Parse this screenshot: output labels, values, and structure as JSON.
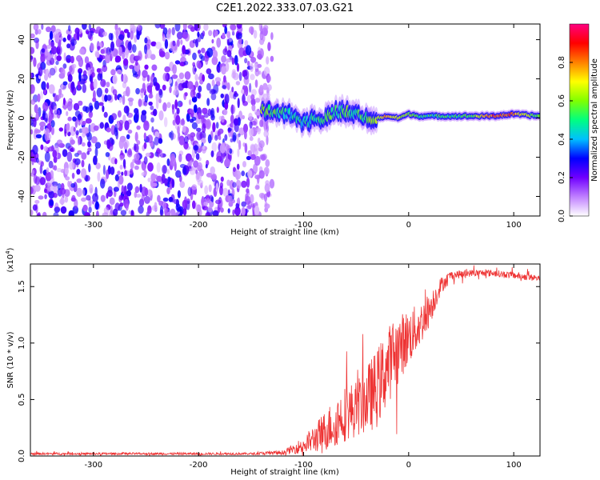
{
  "title": "C2E1.2022.333.07.03.G21",
  "chart_data": [
    {
      "type": "heatmap",
      "xlabel": "Height of straight line (km)",
      "ylabel": "Frequency (Hz)",
      "xlim": [
        -360,
        125
      ],
      "ylim": [
        -50,
        48
      ],
      "x_ticks": [
        -300,
        -200,
        -100,
        0,
        100
      ],
      "x_tick_labels": [
        "-300",
        "-200",
        "-100",
        "0",
        "100"
      ],
      "y_ticks": [
        -40,
        -20,
        0,
        20,
        40
      ],
      "y_tick_labels": [
        "-40",
        "-20",
        "0",
        "20",
        "40"
      ],
      "noise_region": {
        "x": [
          -360,
          -130
        ],
        "y": [
          -50,
          48
        ]
      },
      "signal_line": {
        "x": [
          -140,
          -120,
          -110,
          -100,
          -90,
          -80,
          -70,
          -60,
          -50,
          -40,
          -30,
          -20,
          -10,
          0,
          10,
          20,
          40,
          60,
          80,
          100,
          125
        ],
        "y": [
          4,
          3,
          1,
          -2,
          -1,
          0,
          3,
          3,
          2,
          0,
          0,
          1,
          0,
          2,
          1,
          1,
          1,
          1,
          1,
          2,
          1
        ],
        "amplitude": [
          0.6,
          0.5,
          0.45,
          0.5,
          0.5,
          0.55,
          0.5,
          0.55,
          0.5,
          0.55,
          0.6,
          0.8,
          0.65,
          0.6,
          0.5,
          0.5,
          0.5,
          0.55,
          0.85,
          0.8,
          0.5
        ]
      },
      "grid": false
    },
    {
      "type": "colorbar",
      "label": "Normalized spectral amplitude",
      "range": [
        0,
        1
      ],
      "ticks": [
        0.0,
        0.2,
        0.4,
        0.6,
        0.8
      ],
      "tick_labels": [
        "0.0",
        "0.2",
        "0.4",
        "0.6",
        "0.8"
      ],
      "colors": [
        "#ffffff",
        "#c080ff",
        "#7000ff",
        "#0000ff",
        "#00c0ff",
        "#00ff80",
        "#80ff00",
        "#ffff00",
        "#ff8000",
        "#ff0000",
        "#ff0080"
      ]
    },
    {
      "type": "line",
      "xlabel": "Height of straight line (km)",
      "ylabel": "SNR (10 * v/v)",
      "multiplier_label": "(x10",
      "multiplier_exp": "4",
      "multiplier_close": ")",
      "xlim": [
        -360,
        125
      ],
      "ylim": [
        0,
        1.7
      ],
      "x_ticks": [
        -300,
        -200,
        -100,
        0,
        100
      ],
      "x_tick_labels": [
        "-300",
        "-200",
        "-100",
        "0",
        "100"
      ],
      "y_ticks": [
        0,
        0.5,
        1.0,
        1.5
      ],
      "y_tick_labels": [
        "0.0",
        "0.5",
        "1.0",
        "1.5"
      ],
      "series": [
        {
          "color": "#ee3333",
          "x": [
            -360,
            -300,
            -250,
            -200,
            -150,
            -120,
            -110,
            -100,
            -90,
            -80,
            -70,
            -60,
            -50,
            -40,
            -30,
            -20,
            -10,
            0,
            10,
            20,
            30,
            40,
            60,
            80,
            100,
            125
          ],
          "y": [
            0.02,
            0.02,
            0.02,
            0.02,
            0.02,
            0.03,
            0.06,
            0.1,
            0.15,
            0.22,
            0.3,
            0.38,
            0.42,
            0.5,
            0.6,
            0.8,
            0.95,
            1.05,
            1.15,
            1.3,
            1.5,
            1.6,
            1.62,
            1.62,
            1.6,
            1.57
          ],
          "noise": [
            0.01,
            0.01,
            0.01,
            0.01,
            0.01,
            0.02,
            0.04,
            0.08,
            0.12,
            0.18,
            0.22,
            0.25,
            0.25,
            0.3,
            0.35,
            0.35,
            0.3,
            0.25,
            0.2,
            0.15,
            0.08,
            0.04,
            0.03,
            0.03,
            0.03,
            0.03
          ]
        }
      ],
      "grid": false
    }
  ]
}
